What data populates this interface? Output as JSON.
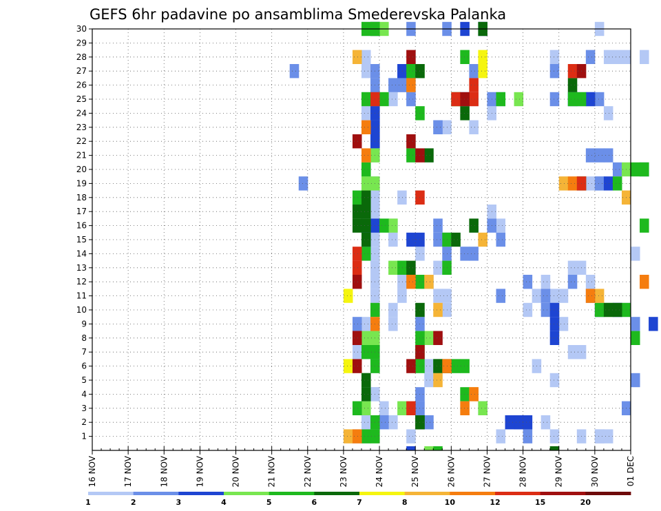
{
  "chart_data": {
    "type": "heatmap",
    "title": "GEFS 6hr padavine po ansamblima Smederevska Palanka",
    "xlabel": "",
    "ylabel": "",
    "x_tick_labels": [
      "16 NOV",
      "17 NOV",
      "18 NOV",
      "19 NOV",
      "20 NOV",
      "21 NOV",
      "22 NOV",
      "23 NOV",
      "24 NOV",
      "25 NOV",
      "26 NOV",
      "27 NOV",
      "28 NOV",
      "29 NOV",
      "30 NOV",
      "01 DEC"
    ],
    "y_tick_labels": [
      "1",
      "2",
      "3",
      "4",
      "5",
      "6",
      "7",
      "8",
      "9",
      "10",
      "11",
      "12",
      "13",
      "14",
      "15",
      "16",
      "17",
      "18",
      "19",
      "20",
      "21",
      "22",
      "23",
      "24",
      "25",
      "26",
      "27",
      "28",
      "29",
      "30"
    ],
    "ylim": [
      0,
      30
    ],
    "time_steps": 60,
    "grid": "dotted",
    "colorbar": {
      "labels": [
        "1",
        "2",
        "3",
        "4",
        "5",
        "6",
        "7",
        "8",
        "10",
        "12",
        "15",
        "20"
      ],
      "colors": [
        "#b4c8f5",
        "#6b8fe8",
        "#1e45d2",
        "#78e650",
        "#1eb91e",
        "#0a690a",
        "#f5f50f",
        "#f5b437",
        "#f57d0f",
        "#dc2d14",
        "#a00f0f",
        "#6e0a0a"
      ]
    },
    "cells": [
      [
        1,
        57,
        1
      ],
      [
        1,
        56,
        1
      ],
      [
        1,
        54,
        1
      ],
      [
        1,
        51,
        1
      ],
      [
        1,
        50,
        2
      ],
      [
        1,
        49,
        6
      ],
      [
        1,
        45,
        1
      ],
      [
        1,
        37,
        5
      ],
      [
        1,
        36,
        3
      ],
      [
        1,
        35,
        1
      ],
      [
        1,
        33,
        2
      ],
      [
        1,
        32,
        3
      ],
      [
        1,
        31,
        4
      ],
      [
        1,
        30,
        3
      ],
      [
        1,
        30,
        5
      ],
      [
        1,
        31,
        6
      ],
      [
        1,
        31,
        8
      ],
      [
        1,
        30,
        9
      ],
      [
        1,
        31,
        10
      ],
      [
        1,
        31,
        11
      ],
      [
        1,
        31,
        12
      ],
      [
        1,
        31,
        13
      ],
      [
        1,
        31,
        14
      ],
      [
        1,
        31,
        16
      ],
      [
        1,
        31,
        17
      ],
      [
        1,
        31,
        19
      ],
      [
        1,
        30,
        19
      ],
      [
        1,
        30,
        20
      ],
      [
        1,
        31,
        21
      ],
      [
        1,
        30,
        24
      ],
      [
        1,
        30,
        25
      ],
      [
        1,
        31,
        26
      ],
      [
        1,
        30,
        27
      ],
      [
        1,
        30,
        28
      ],
      [
        1,
        30,
        30
      ],
      [
        1,
        31,
        30
      ],
      [
        1,
        31,
        15
      ],
      [
        1,
        31,
        18
      ],
      [
        1,
        30,
        1
      ],
      [
        1,
        29,
        1
      ],
      [
        1,
        31,
        2
      ],
      [
        1,
        30,
        2
      ],
      [
        1,
        30,
        4
      ],
      [
        1,
        31,
        4
      ],
      [
        1,
        29,
        7
      ],
      [
        1,
        31,
        7
      ],
      [
        1,
        34,
        11
      ],
      [
        1,
        33,
        10
      ],
      [
        1,
        33,
        9
      ],
      [
        1,
        34,
        12
      ],
      [
        1,
        33,
        16
      ],
      [
        1,
        33,
        15
      ],
      [
        1,
        34,
        18
      ],
      [
        1,
        35,
        25
      ],
      [
        1,
        33,
        25
      ],
      [
        1,
        34,
        26
      ],
      [
        1,
        36,
        14
      ],
      [
        1,
        38,
        13
      ],
      [
        1,
        37,
        12
      ],
      [
        1,
        38,
        11
      ],
      [
        1,
        39,
        11
      ],
      [
        1,
        39,
        10
      ],
      [
        1,
        38,
        8
      ],
      [
        1,
        37,
        6
      ],
      [
        1,
        38,
        23
      ],
      [
        1,
        39,
        23
      ],
      [
        1,
        42,
        23
      ],
      [
        1,
        41,
        25
      ],
      [
        1,
        42,
        25
      ],
      [
        1,
        44,
        24
      ],
      [
        1,
        44,
        17
      ],
      [
        1,
        44,
        25
      ],
      [
        1,
        45,
        16
      ],
      [
        1,
        48,
        2
      ],
      [
        1,
        48,
        10
      ],
      [
        1,
        49,
        11
      ],
      [
        1,
        50,
        12
      ],
      [
        1,
        52,
        9
      ],
      [
        1,
        53,
        7
      ],
      [
        1,
        54,
        7
      ],
      [
        1,
        52,
        11
      ],
      [
        1,
        51,
        5
      ],
      [
        1,
        53,
        13
      ],
      [
        1,
        54,
        13
      ],
      [
        1,
        55,
        12
      ],
      [
        1,
        58,
        10
      ],
      [
        1,
        59,
        10
      ],
      [
        1,
        60,
        14
      ],
      [
        1,
        55,
        19
      ],
      [
        1,
        56,
        19
      ],
      [
        1,
        57,
        28
      ],
      [
        1,
        58,
        28
      ],
      [
        1,
        59,
        28
      ],
      [
        1,
        61,
        28
      ],
      [
        1,
        57,
        24
      ],
      [
        1,
        56,
        30
      ],
      [
        1,
        51,
        11
      ],
      [
        1,
        51,
        28
      ],
      [
        1,
        56,
        1
      ],
      [
        2,
        32,
        2
      ],
      [
        2,
        31,
        30
      ],
      [
        2,
        31,
        27
      ],
      [
        2,
        31,
        26
      ],
      [
        2,
        34,
        26
      ],
      [
        2,
        34,
        27
      ],
      [
        2,
        35,
        25
      ],
      [
        2,
        38,
        23
      ],
      [
        2,
        35,
        30
      ],
      [
        2,
        39,
        30
      ],
      [
        2,
        41,
        25
      ],
      [
        2,
        44,
        25
      ],
      [
        2,
        45,
        25
      ],
      [
        2,
        42,
        27
      ],
      [
        2,
        29,
        9
      ],
      [
        2,
        36,
        9
      ],
      [
        2,
        45,
        11
      ],
      [
        2,
        48,
        12
      ],
      [
        2,
        50,
        11
      ],
      [
        2,
        51,
        10
      ],
      [
        2,
        53,
        12
      ],
      [
        2,
        55,
        11
      ],
      [
        2,
        58,
        20
      ],
      [
        2,
        61,
        20
      ],
      [
        2,
        60,
        9
      ],
      [
        2,
        60,
        5
      ],
      [
        2,
        59,
        3
      ],
      [
        2,
        41,
        14
      ],
      [
        2,
        47,
        2
      ],
      [
        2,
        48,
        1
      ],
      [
        2,
        36,
        4
      ],
      [
        2,
        36,
        3
      ],
      [
        2,
        37,
        2
      ],
      [
        2,
        38,
        16
      ],
      [
        2,
        44,
        16
      ],
      [
        2,
        45,
        15
      ],
      [
        2,
        42,
        14
      ],
      [
        2,
        39,
        14
      ],
      [
        2,
        39,
        15
      ],
      [
        2,
        38,
        15
      ],
      [
        2,
        23,
        19
      ],
      [
        2,
        22,
        27
      ],
      [
        2,
        51,
        25
      ],
      [
        2,
        56,
        21
      ],
      [
        2,
        57,
        21
      ],
      [
        2,
        55,
        21
      ],
      [
        2,
        56,
        19
      ],
      [
        2,
        31,
        24
      ],
      [
        2,
        31,
        23
      ],
      [
        2,
        31,
        22
      ],
      [
        2,
        30,
        15
      ],
      [
        2,
        33,
        26
      ],
      [
        2,
        55,
        25
      ],
      [
        2,
        56,
        25
      ],
      [
        2,
        54,
        25
      ],
      [
        2,
        55,
        28
      ],
      [
        2,
        43,
        3
      ],
      [
        2,
        51,
        27
      ],
      [
        2,
        50,
        10
      ],
      [
        3,
        31,
        30
      ],
      [
        3,
        31,
        25
      ],
      [
        3,
        31,
        24
      ],
      [
        3,
        31,
        23
      ],
      [
        3,
        31,
        22
      ],
      [
        3,
        30,
        16
      ],
      [
        3,
        31,
        16
      ],
      [
        3,
        30,
        15
      ],
      [
        3,
        35,
        27
      ],
      [
        3,
        34,
        27
      ],
      [
        3,
        41,
        30
      ],
      [
        3,
        43,
        30
      ],
      [
        3,
        36,
        15
      ],
      [
        3,
        35,
        15
      ],
      [
        3,
        47,
        2
      ],
      [
        3,
        48,
        2
      ],
      [
        3,
        46,
        2
      ],
      [
        3,
        51,
        10
      ],
      [
        3,
        51,
        9
      ],
      [
        3,
        51,
        8
      ],
      [
        3,
        56,
        10
      ],
      [
        3,
        58,
        10
      ],
      [
        3,
        62,
        9
      ],
      [
        3,
        57,
        19
      ],
      [
        3,
        53,
        25
      ],
      [
        3,
        55,
        25
      ],
      [
        3,
        35,
        0
      ],
      [
        4,
        31,
        30
      ],
      [
        4,
        32,
        30
      ],
      [
        4,
        30,
        19
      ],
      [
        4,
        30,
        20
      ],
      [
        4,
        31,
        19
      ],
      [
        4,
        31,
        21
      ],
      [
        4,
        33,
        16
      ],
      [
        4,
        30,
        18
      ],
      [
        4,
        30,
        8
      ],
      [
        4,
        31,
        8
      ],
      [
        4,
        34,
        3
      ],
      [
        4,
        40,
        25
      ],
      [
        4,
        37,
        8
      ],
      [
        4,
        43,
        3
      ],
      [
        4,
        47,
        25
      ],
      [
        4,
        57,
        10
      ],
      [
        4,
        59,
        20
      ],
      [
        4,
        36,
        27
      ],
      [
        4,
        34,
        13
      ],
      [
        4,
        33,
        13
      ],
      [
        4,
        30,
        3
      ],
      [
        4,
        37,
        0
      ],
      [
        5,
        29,
        18
      ],
      [
        5,
        30,
        20
      ],
      [
        5,
        31,
        7
      ],
      [
        5,
        31,
        6
      ],
      [
        5,
        31,
        10
      ],
      [
        5,
        35,
        27
      ],
      [
        5,
        36,
        24
      ],
      [
        5,
        35,
        21
      ],
      [
        5,
        34,
        13
      ],
      [
        5,
        36,
        7
      ],
      [
        5,
        36,
        8
      ],
      [
        5,
        30,
        30
      ],
      [
        5,
        31,
        30
      ],
      [
        5,
        41,
        4
      ],
      [
        5,
        40,
        6
      ],
      [
        5,
        30,
        25
      ],
      [
        5,
        32,
        25
      ],
      [
        5,
        32,
        16
      ],
      [
        5,
        39,
        15
      ],
      [
        5,
        30,
        14
      ],
      [
        5,
        39,
        13
      ],
      [
        5,
        30,
        7
      ],
      [
        5,
        36,
        6
      ],
      [
        5,
        38,
        6
      ],
      [
        5,
        41,
        6
      ],
      [
        5,
        29,
        3
      ],
      [
        5,
        31,
        2
      ],
      [
        5,
        36,
        12
      ],
      [
        5,
        40,
        25
      ],
      [
        5,
        41,
        28
      ],
      [
        5,
        45,
        25
      ],
      [
        5,
        53,
        25
      ],
      [
        5,
        54,
        25
      ],
      [
        5,
        59,
        10
      ],
      [
        5,
        56,
        10
      ],
      [
        5,
        58,
        19
      ],
      [
        5,
        60,
        8
      ],
      [
        5,
        60,
        20
      ],
      [
        5,
        61,
        20
      ],
      [
        5,
        30,
        5
      ],
      [
        5,
        30,
        1
      ],
      [
        5,
        31,
        1
      ],
      [
        5,
        38,
        0
      ],
      [
        5,
        61,
        16
      ],
      [
        5,
        54,
        19
      ],
      [
        6,
        30,
        16
      ],
      [
        6,
        30,
        15
      ],
      [
        6,
        30,
        17
      ],
      [
        6,
        30,
        18
      ],
      [
        6,
        30,
        5
      ],
      [
        6,
        30,
        4
      ],
      [
        6,
        36,
        10
      ],
      [
        6,
        36,
        2
      ],
      [
        6,
        36,
        27
      ],
      [
        6,
        41,
        24
      ],
      [
        6,
        38,
        6
      ],
      [
        6,
        39,
        6
      ],
      [
        6,
        40,
        15
      ],
      [
        6,
        35,
        13
      ],
      [
        6,
        37,
        21
      ],
      [
        6,
        42,
        16
      ],
      [
        6,
        51,
        0
      ],
      [
        6,
        57,
        10
      ],
      [
        6,
        58,
        10
      ],
      [
        6,
        36,
        2
      ],
      [
        6,
        43,
        30
      ],
      [
        6,
        53,
        26
      ],
      [
        6,
        29,
        16
      ],
      [
        6,
        29,
        17
      ],
      [
        7,
        28,
        6
      ],
      [
        7,
        28,
        11
      ],
      [
        7,
        43,
        28
      ],
      [
        7,
        43,
        27
      ],
      [
        8,
        28,
        1
      ],
      [
        8,
        29,
        28
      ],
      [
        8,
        38,
        5
      ],
      [
        8,
        38,
        10
      ],
      [
        8,
        37,
        12
      ],
      [
        8,
        42,
        4
      ],
      [
        8,
        43,
        15
      ],
      [
        8,
        52,
        19
      ],
      [
        8,
        56,
        11
      ],
      [
        8,
        59,
        18
      ],
      [
        9,
        30,
        21
      ],
      [
        9,
        30,
        23
      ],
      [
        9,
        31,
        9
      ],
      [
        9,
        35,
        12
      ],
      [
        9,
        35,
        26
      ],
      [
        9,
        39,
        6
      ],
      [
        9,
        41,
        3
      ],
      [
        9,
        42,
        4
      ],
      [
        9,
        53,
        19
      ],
      [
        9,
        55,
        11
      ],
      [
        9,
        61,
        12
      ],
      [
        9,
        29,
        1
      ],
      [
        10,
        29,
        13
      ],
      [
        10,
        29,
        14
      ],
      [
        10,
        31,
        25
      ],
      [
        10,
        35,
        3
      ],
      [
        10,
        36,
        18
      ],
      [
        10,
        40,
        25
      ],
      [
        10,
        42,
        25
      ],
      [
        10,
        42,
        26
      ],
      [
        10,
        54,
        19
      ],
      [
        10,
        53,
        27
      ],
      [
        10,
        29,
        8
      ],
      [
        11,
        29,
        22
      ],
      [
        11,
        29,
        12
      ],
      [
        11,
        29,
        6
      ],
      [
        11,
        29,
        8
      ],
      [
        11,
        35,
        28
      ],
      [
        11,
        35,
        22
      ],
      [
        11,
        36,
        21
      ],
      [
        11,
        36,
        7
      ],
      [
        11,
        35,
        6
      ],
      [
        11,
        38,
        8
      ],
      [
        11,
        41,
        25
      ],
      [
        11,
        54,
        27
      ]
    ]
  }
}
